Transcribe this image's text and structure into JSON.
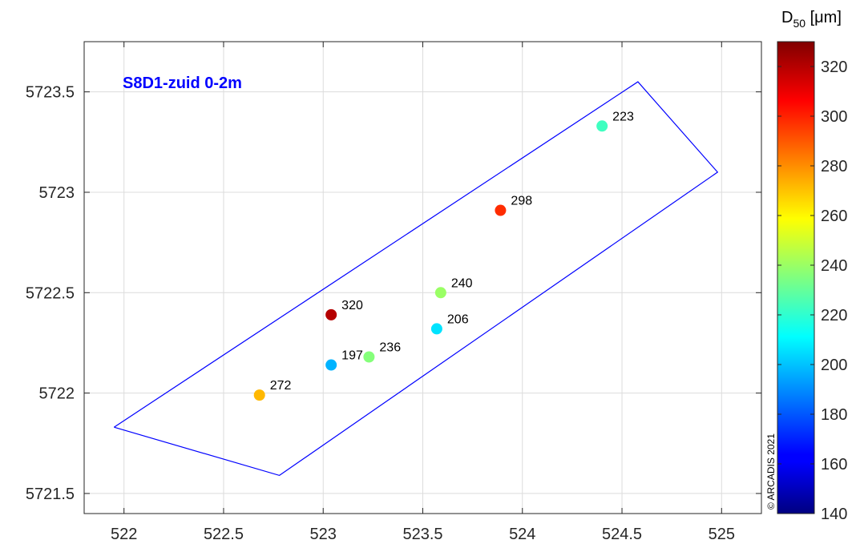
{
  "chart_data": {
    "type": "scatter",
    "title": "",
    "annotation": "S8D1-zuid 0-2m",
    "copyright": "© ARCADIS 2021",
    "xlim": [
      521.8,
      525.2
    ],
    "ylim": [
      5721.4,
      5723.75
    ],
    "xticks": [
      522,
      522.5,
      523,
      523.5,
      524,
      524.5,
      525
    ],
    "xtick_labels": [
      "522",
      "522.5",
      "523",
      "523.5",
      "524",
      "524.5",
      "525"
    ],
    "yticks": [
      5721.5,
      5722,
      5722.5,
      5723,
      5723.5
    ],
    "ytick_labels": [
      "5721.5",
      "5722",
      "5722.5",
      "5723",
      "5723.5"
    ],
    "grid": true,
    "colorbar": {
      "label_main": "D",
      "label_sub": "50",
      "label_unit": " [μm]",
      "range": [
        140,
        330
      ],
      "ticks": [
        140,
        160,
        180,
        200,
        220,
        240,
        260,
        280,
        300,
        320
      ],
      "tick_labels": [
        "140",
        "160",
        "180",
        "200",
        "220",
        "240",
        "260",
        "280",
        "300",
        "320"
      ],
      "colormap": "jet"
    },
    "polygon": {
      "color": "#0000ff",
      "points": [
        [
          521.95,
          5721.83
        ],
        [
          522.78,
          5721.59
        ],
        [
          524.98,
          5723.1
        ],
        [
          524.58,
          5723.55
        ],
        [
          521.95,
          5721.83
        ]
      ]
    },
    "points": [
      {
        "x": 524.4,
        "y": 5723.33,
        "value": 223,
        "label": "223"
      },
      {
        "x": 523.89,
        "y": 5722.91,
        "value": 298,
        "label": "298"
      },
      {
        "x": 523.59,
        "y": 5722.5,
        "value": 240,
        "label": "240"
      },
      {
        "x": 523.04,
        "y": 5722.39,
        "value": 320,
        "label": "320"
      },
      {
        "x": 523.57,
        "y": 5722.32,
        "value": 206,
        "label": "206"
      },
      {
        "x": 523.23,
        "y": 5722.18,
        "value": 236,
        "label": "236"
      },
      {
        "x": 523.04,
        "y": 5722.14,
        "value": 197,
        "label": "197"
      },
      {
        "x": 522.68,
        "y": 5721.99,
        "value": 272,
        "label": "272"
      }
    ]
  }
}
